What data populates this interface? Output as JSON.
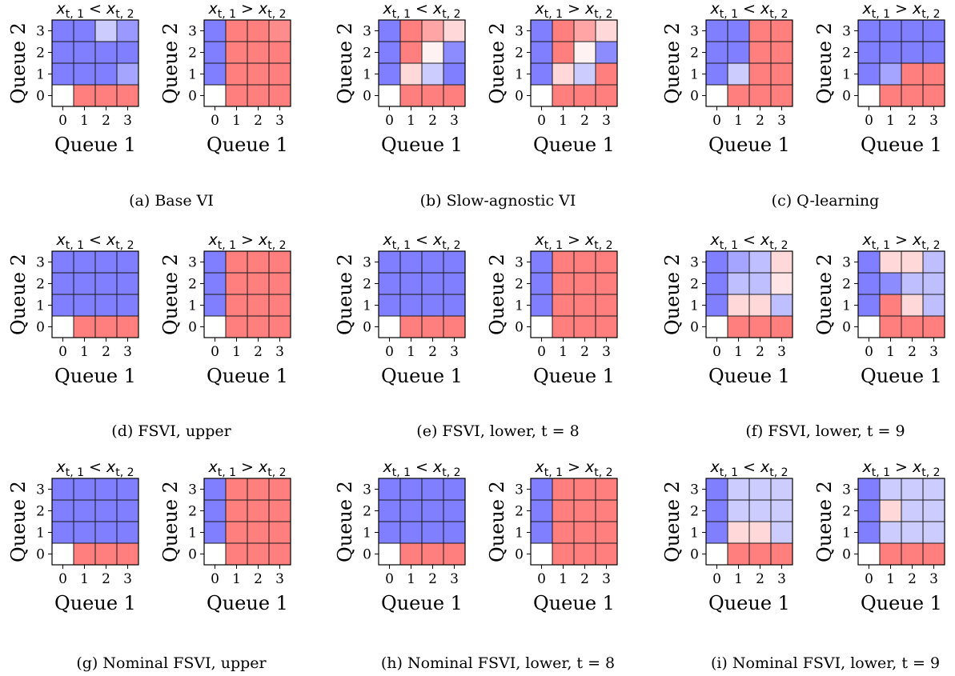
{
  "figure": {
    "colors": {
      "queue_1": "#ff7f7f",
      "queue_2": "#7f7fff",
      "empty": "#ffffff",
      "grid": "#1a1a1a"
    },
    "ticks": [
      "0",
      "1",
      "2",
      "3"
    ],
    "xlabel": "Queue 1",
    "ylabel": "Queue 2",
    "subplot_titles": [
      "x_{t,1} < x_{t,2}",
      "x_{t,1} > x_{t,2}"
    ]
  },
  "chart_data": [
    {
      "type": "heatmap",
      "caption": "(a) Base VI",
      "value_meaning": "probability of serving Queue 1 (1 = red, 0 = blue); blank = empty state",
      "x": [
        0,
        1,
        2,
        3
      ],
      "y": [
        0,
        1,
        2,
        3
      ],
      "xlabel": "Queue 1",
      "ylabel": "Queue 2",
      "panels": [
        {
          "title": "x_{t,1} < x_{t,2}",
          "z": [
            [
              null,
              1,
              1,
              1
            ],
            [
              0,
              0,
              0,
              0.15
            ],
            [
              0,
              0,
              0,
              0
            ],
            [
              0,
              0,
              0.3,
              0.1
            ]
          ]
        },
        {
          "title": "x_{t,1} > x_{t,2}",
          "z": [
            [
              null,
              1,
              1,
              1
            ],
            [
              0,
              1,
              1,
              1
            ],
            [
              0,
              1,
              1,
              1
            ],
            [
              0,
              1,
              1,
              0.95
            ]
          ]
        }
      ]
    },
    {
      "type": "heatmap",
      "caption": "(b) Slow-agnostic VI",
      "value_meaning": "probability of serving Queue 1 (1 = red, 0 = blue); blank = empty state",
      "x": [
        0,
        1,
        2,
        3
      ],
      "y": [
        0,
        1,
        2,
        3
      ],
      "xlabel": "Queue 1",
      "ylabel": "Queue 2",
      "panels": [
        {
          "title": "x_{t,1} < x_{t,2}",
          "z": [
            [
              null,
              1,
              1,
              1
            ],
            [
              0,
              0.65,
              0.3,
              0
            ],
            [
              0,
              1,
              0.55,
              0.05
            ],
            [
              0,
              1,
              0.85,
              0.65
            ]
          ]
        },
        {
          "title": "x_{t,1} > x_{t,2}",
          "z": [
            [
              null,
              1,
              1,
              1
            ],
            [
              0,
              0.65,
              0.3,
              1
            ],
            [
              0,
              1,
              0.55,
              0.05
            ],
            [
              0,
              1,
              0.85,
              0.65
            ]
          ]
        }
      ]
    },
    {
      "type": "heatmap",
      "caption": "(c) Q-learning",
      "value_meaning": "probability of serving Queue 1 (1 = red, 0 = blue); blank = empty state",
      "x": [
        0,
        1,
        2,
        3
      ],
      "y": [
        0,
        1,
        2,
        3
      ],
      "xlabel": "Queue 1",
      "ylabel": "Queue 2",
      "panels": [
        {
          "title": "x_{t,1} < x_{t,2}",
          "z": [
            [
              null,
              1,
              1,
              1
            ],
            [
              0,
              0.3,
              1,
              1
            ],
            [
              0,
              0,
              1,
              1
            ],
            [
              0,
              0,
              1,
              1
            ]
          ]
        },
        {
          "title": "x_{t,1} > x_{t,2}",
          "z": [
            [
              null,
              1,
              1,
              1
            ],
            [
              0,
              0.15,
              1,
              1
            ],
            [
              0,
              0,
              0,
              0
            ],
            [
              0,
              0,
              0,
              0
            ]
          ]
        }
      ]
    },
    {
      "type": "heatmap",
      "caption": "(d) FSVI, upper",
      "value_meaning": "probability of serving Queue 1 (1 = red, 0 = blue); blank = empty state",
      "x": [
        0,
        1,
        2,
        3
      ],
      "y": [
        0,
        1,
        2,
        3
      ],
      "xlabel": "Queue 1",
      "ylabel": "Queue 2",
      "panels": [
        {
          "title": "x_{t,1} < x_{t,2}",
          "z": [
            [
              null,
              1,
              1,
              1
            ],
            [
              0,
              0,
              0,
              0
            ],
            [
              0,
              0,
              0,
              0
            ],
            [
              0,
              0,
              0,
              0
            ]
          ]
        },
        {
          "title": "x_{t,1} > x_{t,2}",
          "z": [
            [
              null,
              1,
              1,
              1
            ],
            [
              0,
              1,
              1,
              1
            ],
            [
              0,
              1,
              1,
              1
            ],
            [
              0,
              1,
              1,
              1
            ]
          ]
        }
      ]
    },
    {
      "type": "heatmap",
      "caption": "(e) FSVI, lower, t = 8",
      "value_meaning": "probability of serving Queue 1 (1 = red, 0 = blue); blank = empty state",
      "x": [
        0,
        1,
        2,
        3
      ],
      "y": [
        0,
        1,
        2,
        3
      ],
      "xlabel": "Queue 1",
      "ylabel": "Queue 2",
      "panels": [
        {
          "title": "x_{t,1} < x_{t,2}",
          "z": [
            [
              null,
              1,
              1,
              1
            ],
            [
              0,
              0,
              0,
              0
            ],
            [
              0,
              0,
              0,
              0
            ],
            [
              0,
              0,
              0,
              0
            ]
          ]
        },
        {
          "title": "x_{t,1} > x_{t,2}",
          "z": [
            [
              null,
              1,
              1,
              1
            ],
            [
              0,
              1,
              1,
              1
            ],
            [
              0,
              1,
              1,
              1
            ],
            [
              0,
              1,
              1,
              1
            ]
          ]
        }
      ]
    },
    {
      "type": "heatmap",
      "caption": "(f) FSVI, lower, t = 9",
      "value_meaning": "probability of serving Queue 1 (1 = red, 0 = blue); blank = empty state",
      "x": [
        0,
        1,
        2,
        3
      ],
      "y": [
        0,
        1,
        2,
        3
      ],
      "xlabel": "Queue 1",
      "ylabel": "Queue 2",
      "panels": [
        {
          "title": "x_{t,1} < x_{t,2}",
          "z": [
            [
              null,
              1,
              1,
              1
            ],
            [
              0,
              0.65,
              0.65,
              0.25
            ],
            [
              0,
              0.25,
              0.25,
              0.6
            ],
            [
              0,
              0.15,
              0.25,
              0.65
            ]
          ]
        },
        {
          "title": "x_{t,1} > x_{t,2}",
          "z": [
            [
              null,
              1,
              1,
              1
            ],
            [
              0,
              1,
              0.65,
              0.25
            ],
            [
              0,
              0.05,
              0.25,
              0.25
            ],
            [
              0,
              0.65,
              0.65,
              0.25
            ]
          ]
        }
      ]
    },
    {
      "type": "heatmap",
      "caption": "(g) Nominal FSVI, upper",
      "value_meaning": "probability of serving Queue 1 (1 = red, 0 = blue); blank = empty state",
      "x": [
        0,
        1,
        2,
        3
      ],
      "y": [
        0,
        1,
        2,
        3
      ],
      "xlabel": "Queue 1",
      "ylabel": "Queue 2",
      "panels": [
        {
          "title": "x_{t,1} < x_{t,2}",
          "z": [
            [
              null,
              1,
              1,
              1
            ],
            [
              0,
              0,
              0,
              0
            ],
            [
              0,
              0,
              0,
              0
            ],
            [
              0,
              0,
              0,
              0
            ]
          ]
        },
        {
          "title": "x_{t,1} > x_{t,2}",
          "z": [
            [
              null,
              1,
              1,
              1
            ],
            [
              0,
              1,
              1,
              1
            ],
            [
              0,
              1,
              1,
              1
            ],
            [
              0,
              1,
              1,
              1
            ]
          ]
        }
      ]
    },
    {
      "type": "heatmap",
      "caption": "(h) Nominal FSVI, lower, t = 8",
      "value_meaning": "probability of serving Queue 1 (1 = red, 0 = blue); blank = empty state",
      "x": [
        0,
        1,
        2,
        3
      ],
      "y": [
        0,
        1,
        2,
        3
      ],
      "xlabel": "Queue 1",
      "ylabel": "Queue 2",
      "panels": [
        {
          "title": "x_{t,1} < x_{t,2}",
          "z": [
            [
              null,
              1,
              1,
              1
            ],
            [
              0,
              0,
              0,
              0
            ],
            [
              0,
              0,
              0,
              0
            ],
            [
              0,
              0,
              0,
              0
            ]
          ]
        },
        {
          "title": "x_{t,1} > x_{t,2}",
          "z": [
            [
              null,
              1,
              1,
              1
            ],
            [
              0,
              1,
              1,
              1
            ],
            [
              0,
              1,
              1,
              1
            ],
            [
              0,
              1,
              1,
              1
            ]
          ]
        }
      ]
    },
    {
      "type": "heatmap",
      "caption": "(i) Nominal FSVI, lower, t = 9",
      "value_meaning": "probability of serving Queue 1 (1 = red, 0 = blue); blank = empty state",
      "x": [
        0,
        1,
        2,
        3
      ],
      "y": [
        0,
        1,
        2,
        3
      ],
      "xlabel": "Queue 1",
      "ylabel": "Queue 2",
      "panels": [
        {
          "title": "x_{t,1} < x_{t,2}",
          "z": [
            [
              null,
              1,
              1,
              1
            ],
            [
              0,
              0.65,
              0.65,
              0.3
            ],
            [
              0,
              0.3,
              0.3,
              0.3
            ],
            [
              0,
              0.3,
              0.3,
              0.3
            ]
          ]
        },
        {
          "title": "x_{t,1} > x_{t,2}",
          "z": [
            [
              null,
              1,
              1,
              1
            ],
            [
              0,
              0.3,
              0.3,
              0.3
            ],
            [
              0,
              0.65,
              0.3,
              0.3
            ],
            [
              0,
              0.3,
              0.3,
              0.3
            ]
          ]
        }
      ]
    }
  ]
}
